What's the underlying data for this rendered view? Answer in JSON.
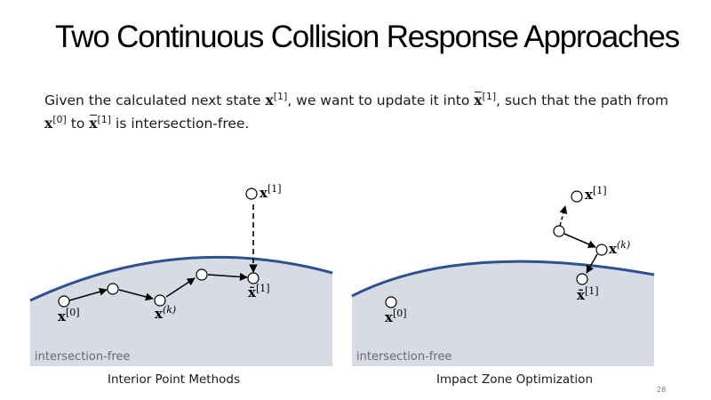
{
  "title": "Two Continuous Collision Response Approaches",
  "intro": {
    "part1": "Given the calculated next state ",
    "x": "x",
    "sup1": "[1]",
    "part2": ", we want to update it into ",
    "xbar": "x",
    "part3": ", such that the path from ",
    "sup0": "[0]",
    "part4": " to ",
    "part5": " is intersection-free."
  },
  "left_panel": {
    "region_label": "intersection-free",
    "caption": "Interior Point Methods",
    "labels": {
      "x0": "x",
      "x0_sup": "[0]",
      "xk": "x",
      "xk_sup": "(k)",
      "xbar1": "x̄",
      "xbar1_sup": "[1]",
      "x1": "x",
      "x1_sup": "[1]"
    }
  },
  "right_panel": {
    "region_label": "intersection-free",
    "caption": "Impact Zone Optimization",
    "labels": {
      "x0": "x",
      "x0_sup": "[0]",
      "xk": "x",
      "xk_sup": "(k)",
      "xbar1": "x̄",
      "xbar1_sup": "[1]",
      "x1": "x",
      "x1_sup": "[1]"
    }
  },
  "page_number": "28",
  "colors": {
    "region_fill": "#d6dbe4",
    "surface_line": "#2e528f",
    "label_gray": "#6b6b6b"
  }
}
